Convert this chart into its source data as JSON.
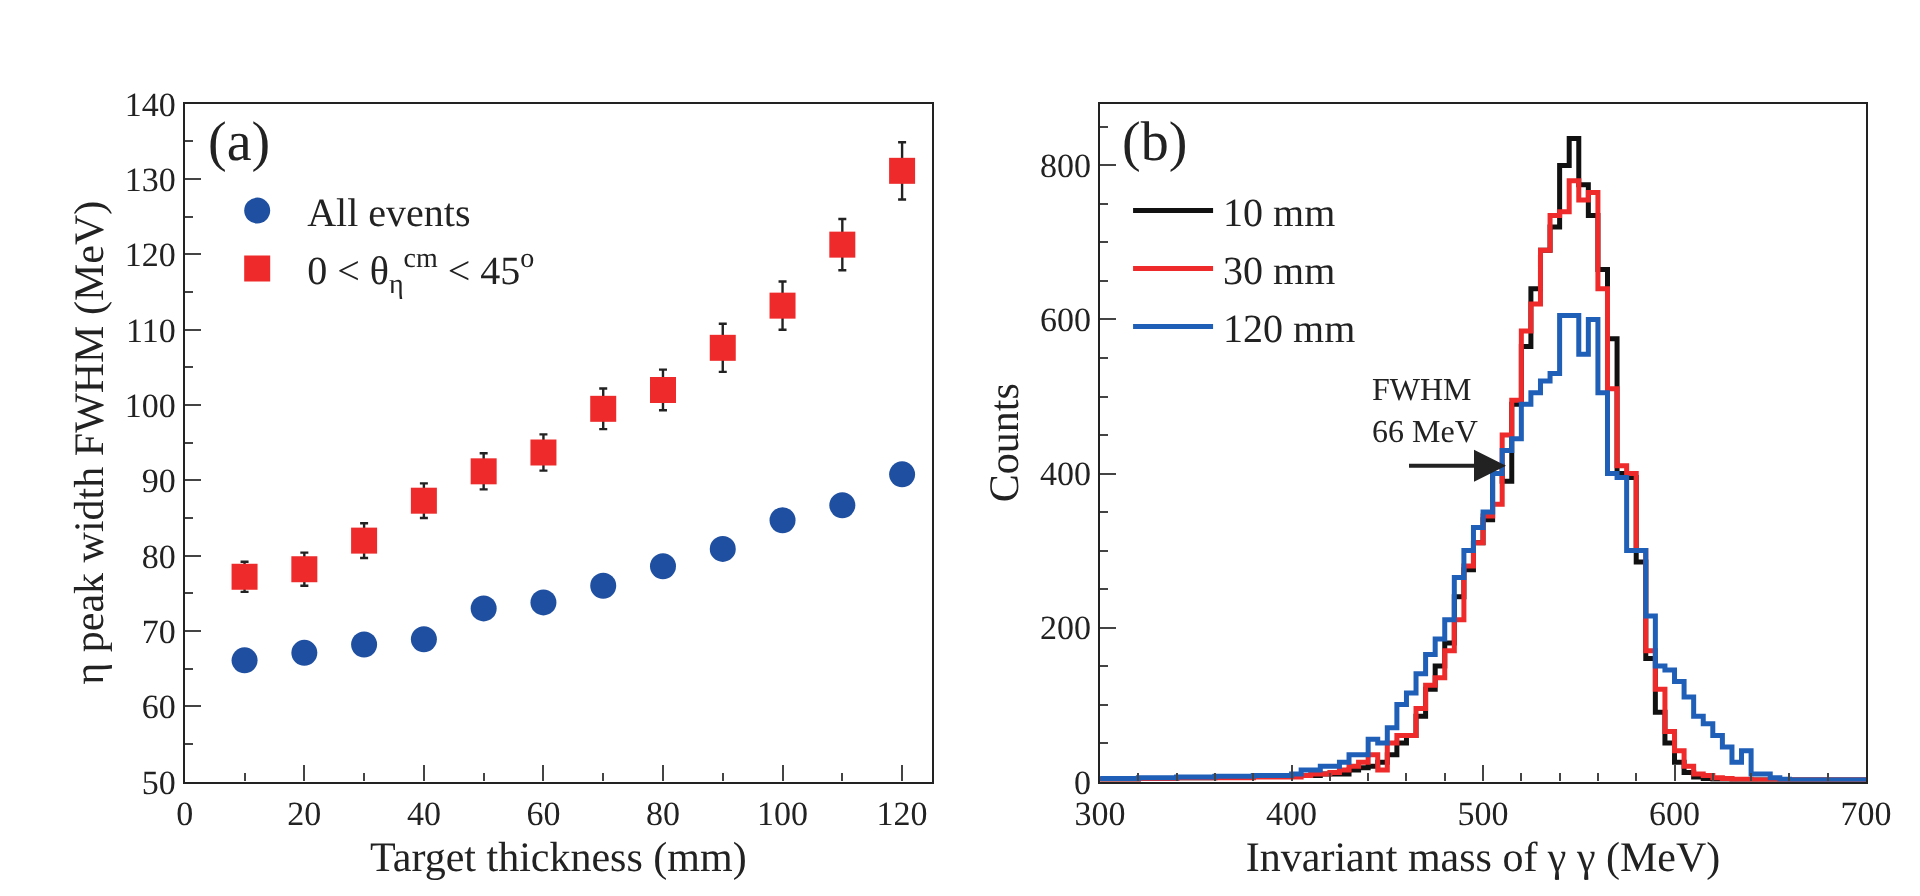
{
  "chart_data": [
    {
      "type": "scatter",
      "title": "(a)",
      "xlabel": "Target thickness (mm)",
      "ylabel": "η peak width FWHM (MeV)",
      "x": [
        10,
        20,
        30,
        40,
        50,
        60,
        70,
        80,
        90,
        100,
        110,
        120
      ],
      "series": [
        {
          "name": "All events",
          "color": "#1f4fa0",
          "marker": "circle",
          "values": [
            66.1,
            67.1,
            68.2,
            68.9,
            73.0,
            73.8,
            76.0,
            78.6,
            80.9,
            84.7,
            86.7,
            90.8
          ]
        },
        {
          "name": "0 < θ$_{η}$$^{cm}$ < 45$^{o}$",
          "color": "#ee2a2a",
          "marker": "square",
          "values": [
            77.2,
            78.2,
            82.0,
            87.3,
            91.2,
            93.7,
            99.5,
            102.0,
            107.6,
            113.2,
            121.3,
            131.1
          ],
          "errors": [
            2.0,
            2.2,
            2.3,
            2.3,
            2.4,
            2.4,
            2.7,
            2.7,
            3.2,
            3.2,
            3.4,
            3.8
          ]
        }
      ],
      "xlim": [
        0,
        125
      ],
      "xticks": [
        0,
        20,
        40,
        60,
        80,
        100,
        120
      ],
      "ylim": [
        50,
        140
      ],
      "yticks": [
        50,
        60,
        70,
        80,
        90,
        100,
        110,
        120,
        130,
        140
      ],
      "legend": "top left"
    },
    {
      "type": "histogram",
      "title": "(b)",
      "xlabel": "Invariant mass of γ γ (MeV)",
      "ylabel": "Counts",
      "bins": [
        300,
        320,
        340,
        360,
        380,
        400,
        405,
        410,
        415,
        420,
        425,
        430,
        435,
        440,
        445,
        450,
        455,
        460,
        465,
        470,
        475,
        480,
        485,
        490,
        495,
        500,
        505,
        510,
        515,
        520,
        525,
        530,
        535,
        540,
        545,
        550,
        555,
        560,
        565,
        570,
        575,
        580,
        585,
        590,
        595,
        600,
        605,
        610,
        615,
        620,
        625,
        630,
        635,
        640,
        645,
        650,
        655,
        660,
        680,
        700
      ],
      "series": [
        {
          "name": "10 mm",
          "color": "#111111",
          "values": [
            3,
            4,
            5,
            6,
            7,
            8,
            8,
            8,
            10,
            10,
            10,
            15,
            18,
            20,
            25,
            35,
            50,
            60,
            85,
            120,
            150,
            180,
            240,
            275,
            310,
            340,
            410,
            390,
            490,
            565,
            640,
            690,
            720,
            800,
            835,
            775,
            735,
            665,
            575,
            400,
            395,
            285,
            160,
            90,
            50,
            25,
            12,
            6,
            4,
            3,
            3,
            2,
            2,
            2,
            2,
            2,
            2,
            2,
            2
          ]
        },
        {
          "name": "30 mm",
          "color": "#ee2a2a",
          "values": [
            3,
            4,
            5,
            5,
            6,
            6,
            8,
            10,
            10,
            12,
            15,
            20,
            25,
            35,
            15,
            50,
            60,
            60,
            95,
            125,
            135,
            170,
            210,
            280,
            310,
            345,
            360,
            450,
            495,
            585,
            620,
            690,
            735,
            740,
            780,
            755,
            765,
            640,
            510,
            410,
            400,
            300,
            170,
            120,
            65,
            40,
            20,
            10,
            8,
            5,
            4,
            3,
            3,
            2,
            2,
            2,
            2,
            2,
            2
          ]
        },
        {
          "name": "120 mm",
          "color": "#1f5fb8",
          "values": [
            4,
            5,
            6,
            7,
            8,
            10,
            15,
            15,
            20,
            20,
            25,
            35,
            35,
            55,
            50,
            70,
            100,
            115,
            140,
            165,
            185,
            210,
            265,
            300,
            330,
            350,
            400,
            430,
            445,
            490,
            505,
            520,
            530,
            605,
            605,
            555,
            600,
            505,
            400,
            395,
            300,
            300,
            215,
            150,
            145,
            130,
            110,
            85,
            75,
            60,
            45,
            25,
            40,
            10,
            10,
            5,
            3,
            2,
            2
          ]
        }
      ],
      "xlim": [
        300,
        700
      ],
      "xticks": [
        300,
        400,
        500,
        600,
        700
      ],
      "ylim": [
        0,
        880
      ],
      "yticks": [
        0,
        200,
        400,
        600,
        800
      ],
      "legend": "top left",
      "annotations": [
        {
          "text": "FWHM\n66 MeV",
          "x": 512,
          "y": 410
        }
      ]
    }
  ]
}
